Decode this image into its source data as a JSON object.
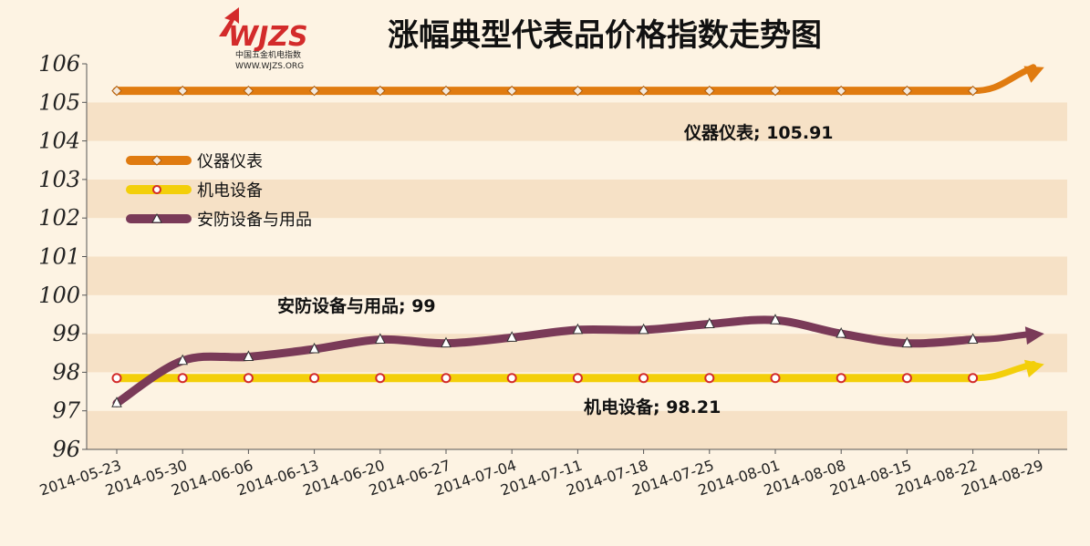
{
  "title": "涨幅典型代表品价格指数走势图",
  "logo": {
    "mark": "WJZS",
    "line1": "中国五金机电指数",
    "line2": "WWW.WJZS.ORG"
  },
  "colors": {
    "background": "#fdf3e3",
    "band": "#f6e1c6",
    "axis": "#555555"
  },
  "chart_data": {
    "type": "line",
    "title": "涨幅典型代表品价格指数走势图",
    "categories": [
      "2014-05-23",
      "2014-05-30",
      "2014-06-06",
      "2014-06-13",
      "2014-06-20",
      "2014-06-27",
      "2014-07-04",
      "2014-07-11",
      "2014-07-18",
      "2014-07-25",
      "2014-08-01",
      "2014-08-08",
      "2014-08-15",
      "2014-08-22",
      "2014-08-29"
    ],
    "ylim": [
      96,
      106
    ],
    "yticks": [
      96,
      97,
      98,
      99,
      100,
      101,
      102,
      103,
      104,
      105,
      106
    ],
    "grid": "alternating horizontal bands",
    "legend_position": "left",
    "series": [
      {
        "name": "仪器仪表",
        "color": "#e07b10",
        "marker": "diamond",
        "values": [
          105.3,
          105.3,
          105.3,
          105.3,
          105.3,
          105.3,
          105.3,
          105.3,
          105.3,
          105.3,
          105.3,
          105.3,
          105.3,
          105.3,
          105.91
        ],
        "end_label": "仪器仪表; 105.91"
      },
      {
        "name": "机电设备",
        "color": "#f3cf0a",
        "marker": "circle",
        "values": [
          97.85,
          97.85,
          97.85,
          97.85,
          97.85,
          97.85,
          97.85,
          97.85,
          97.85,
          97.85,
          97.85,
          97.85,
          97.85,
          97.85,
          98.21
        ],
        "end_label": "机电设备; 98.21"
      },
      {
        "name": "安防设备与用品",
        "color": "#7a3a58",
        "marker": "triangle",
        "values": [
          97.2,
          98.3,
          98.4,
          98.6,
          98.85,
          98.75,
          98.9,
          99.1,
          99.1,
          99.25,
          99.35,
          99.0,
          98.75,
          98.85,
          99.0
        ],
        "end_label": "安防设备与用品; 99"
      }
    ]
  }
}
